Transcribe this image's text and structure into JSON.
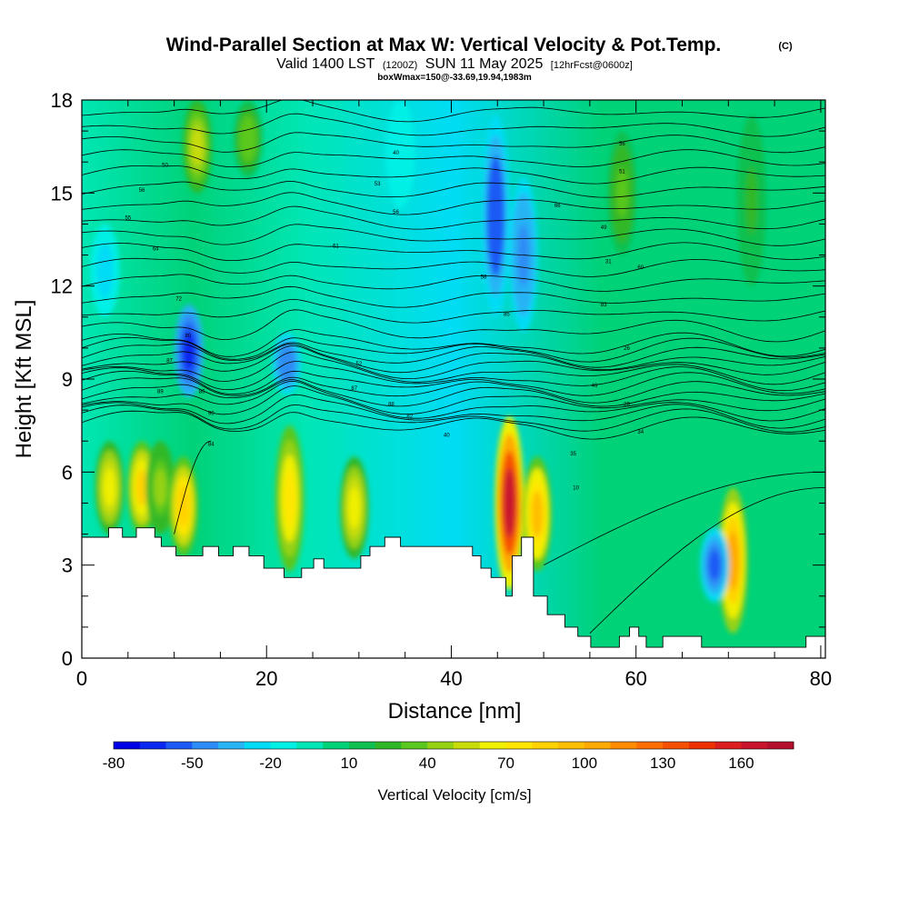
{
  "header": {
    "title": "Wind-Parallel Section at Max W: Vertical Velocity & Pot.Temp.",
    "copyright": "(C)",
    "valid_prefix": "Valid 1400 LST",
    "valid_utc": "(1200Z)",
    "valid_date": "SUN 11 May 2025",
    "forecast": "[12hrFcst@0600z]",
    "box_info": "boxWmax=150@-33.69,19.94,1983m"
  },
  "chart_data": {
    "type": "heatmap",
    "title": "Wind-Parallel Section at Max W: Vertical Velocity & Pot.Temp.",
    "xlabel": "Distance [nm]",
    "ylabel": "Height [Kft MSL]",
    "xlim": [
      0,
      80.5
    ],
    "ylim": [
      0,
      18
    ],
    "x_ticks": [
      "0",
      "20",
      "40",
      "60",
      "80"
    ],
    "y_ticks": [
      "0",
      "3",
      "6",
      "9",
      "12",
      "15",
      "18"
    ],
    "colorbar": {
      "label": "Vertical Velocity [cm/s]",
      "range": [
        -80,
        180
      ],
      "step": 10,
      "tick_labels": [
        "-80",
        "-50",
        "-20",
        "10",
        "40",
        "70",
        "100",
        "130",
        "160"
      ],
      "colors": [
        "#0000e6",
        "#0a28f0",
        "#1e5af5",
        "#2d8cf5",
        "#28b4f5",
        "#00dcf5",
        "#00f0e6",
        "#00e6b4",
        "#00d278",
        "#10c050",
        "#30b828",
        "#5ac81e",
        "#96d214",
        "#c8dc0a",
        "#f0f000",
        "#ffe600",
        "#ffd200",
        "#ffbe00",
        "#ffaa00",
        "#ff8c00",
        "#ff6e00",
        "#f55000",
        "#eb3200",
        "#dc1e1e",
        "#c8142d",
        "#b4102d"
      ]
    },
    "velocity_cells": [
      {
        "x": 3,
        "z0": 4.0,
        "z1": 7.0,
        "w": 60
      },
      {
        "x": 6.5,
        "z0": 4.0,
        "z1": 7.0,
        "w": 80
      },
      {
        "x": 8.5,
        "z0": 4.0,
        "z1": 7.0,
        "w": 40
      },
      {
        "x": 11,
        "z0": 3.3,
        "z1": 6.5,
        "w": 85
      },
      {
        "x": 22.5,
        "z0": 2.8,
        "z1": 7.5,
        "w": 75
      },
      {
        "x": 29.5,
        "z0": 3.2,
        "z1": 6.5,
        "w": 65
      },
      {
        "x": 46.3,
        "z0": 2.2,
        "z1": 7.8,
        "w": 165
      },
      {
        "x": 49.3,
        "z0": 2.8,
        "z1": 6.5,
        "w": 95
      },
      {
        "x": 70.5,
        "z0": 0.8,
        "z1": 5.5,
        "w": 100
      },
      {
        "x": 11.6,
        "z0": 8.4,
        "z1": 11.4,
        "w": -70
      },
      {
        "x": 22.2,
        "z0": 8.5,
        "z1": 10.5,
        "w": -50
      },
      {
        "x": 44.8,
        "z0": 11.0,
        "z1": 17.5,
        "w": -60
      },
      {
        "x": 47.8,
        "z0": 10.5,
        "z1": 15.5,
        "w": -45
      },
      {
        "x": 68.5,
        "z0": 1.8,
        "z1": 4.2,
        "w": -55
      },
      {
        "x": 2.5,
        "z0": 11.0,
        "z1": 14.0,
        "w": -25
      },
      {
        "x": 12.5,
        "z0": 15.0,
        "z1": 18.0,
        "w": 55
      },
      {
        "x": 18,
        "z0": 15.5,
        "z1": 18.0,
        "w": 35
      },
      {
        "x": 34.5,
        "z0": 14.5,
        "z1": 18.0,
        "w": -15
      },
      {
        "x": 58.5,
        "z0": 13.0,
        "z1": 17.0,
        "w": 30
      },
      {
        "x": 72.5,
        "z0": 12.0,
        "z1": 17.5,
        "w": 20
      }
    ],
    "terrain_kft": [
      [
        0,
        3.9
      ],
      [
        2.9,
        3.9
      ],
      [
        2.9,
        4.2
      ],
      [
        4.4,
        4.2
      ],
      [
        4.4,
        3.9
      ],
      [
        5.9,
        3.9
      ],
      [
        5.9,
        4.2
      ],
      [
        7.9,
        4.2
      ],
      [
        7.9,
        3.9
      ],
      [
        8.6,
        3.9
      ],
      [
        8.6,
        3.6
      ],
      [
        10.2,
        3.6
      ],
      [
        10.2,
        3.3
      ],
      [
        13.1,
        3.3
      ],
      [
        13.1,
        3.6
      ],
      [
        14.8,
        3.6
      ],
      [
        14.8,
        3.3
      ],
      [
        16.4,
        3.3
      ],
      [
        16.4,
        3.6
      ],
      [
        18.1,
        3.6
      ],
      [
        18.1,
        3.3
      ],
      [
        19.7,
        3.3
      ],
      [
        19.7,
        2.9
      ],
      [
        21.9,
        2.9
      ],
      [
        21.9,
        2.6
      ],
      [
        23.8,
        2.6
      ],
      [
        23.8,
        2.9
      ],
      [
        25.1,
        2.9
      ],
      [
        25.1,
        3.2
      ],
      [
        26.2,
        3.2
      ],
      [
        26.2,
        2.9
      ],
      [
        30.2,
        2.9
      ],
      [
        30.2,
        3.3
      ],
      [
        31.2,
        3.3
      ],
      [
        31.2,
        3.6
      ],
      [
        32.8,
        3.6
      ],
      [
        32.8,
        3.9
      ],
      [
        34.5,
        3.9
      ],
      [
        34.5,
        3.6
      ],
      [
        42.3,
        3.6
      ],
      [
        42.3,
        3.3
      ],
      [
        43.2,
        3.3
      ],
      [
        43.2,
        2.9
      ],
      [
        44.3,
        2.9
      ],
      [
        44.3,
        2.6
      ],
      [
        45.9,
        2.6
      ],
      [
        45.9,
        2.0
      ],
      [
        46.6,
        2.0
      ],
      [
        46.6,
        3.3
      ],
      [
        47.6,
        3.3
      ],
      [
        47.6,
        3.9
      ],
      [
        48.9,
        3.9
      ],
      [
        48.9,
        2.0
      ],
      [
        50.4,
        2.0
      ],
      [
        50.4,
        1.4
      ],
      [
        52.3,
        1.4
      ],
      [
        52.3,
        1.0
      ],
      [
        53.7,
        1.0
      ],
      [
        53.7,
        0.7
      ],
      [
        55.1,
        0.7
      ],
      [
        55.1,
        0.35
      ],
      [
        58.2,
        0.35
      ],
      [
        58.2,
        0.7
      ],
      [
        59.3,
        0.7
      ],
      [
        59.3,
        1.0
      ],
      [
        60.3,
        1.0
      ],
      [
        60.3,
        0.7
      ],
      [
        61.1,
        0.7
      ],
      [
        61.1,
        0.35
      ],
      [
        62.9,
        0.35
      ],
      [
        62.9,
        0.7
      ],
      [
        67.1,
        0.7
      ],
      [
        67.1,
        0.35
      ],
      [
        78.4,
        0.35
      ],
      [
        78.4,
        0.7
      ],
      [
        80.5,
        0.7
      ]
    ],
    "theta_contour_labels": [
      "50",
      "56",
      "55",
      "64",
      "72",
      "80",
      "87",
      "86",
      "89",
      "90",
      "40",
      "53",
      "56",
      "61",
      "84",
      "58",
      "85",
      "52",
      "87",
      "88",
      "82",
      "40",
      "56",
      "51",
      "66",
      "49",
      "31",
      "60",
      "83",
      "26",
      "46",
      "29",
      "34",
      "35",
      "10"
    ]
  }
}
